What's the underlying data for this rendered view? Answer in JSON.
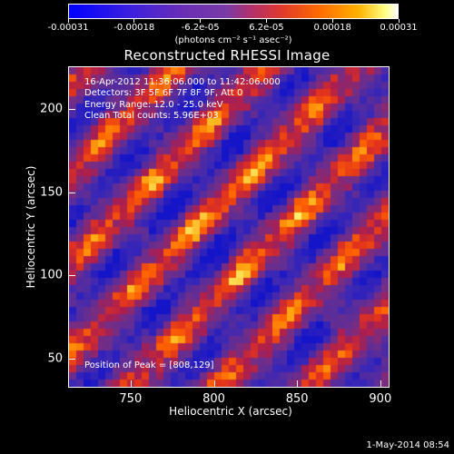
{
  "colorbar": {
    "tick_labels": [
      "-0.00031",
      "-0.00018",
      "-6.2e-05",
      "6.2e-05",
      "0.00018",
      "0.00031"
    ],
    "unit": "(photons cm⁻² s⁻¹ asec⁻²)",
    "colors": [
      "#0000ff",
      "#6a2fb5",
      "#e03a2a",
      "#ff6a00",
      "#ffb000",
      "#ffffff"
    ]
  },
  "annotations": {
    "time_range": "16-Apr-2012 11:36:06.000 to 11:42:06.000",
    "detectors": "Detectors: 3F 5F 6F 7F 8F 9F, Att 0",
    "energy_range": "Energy Range: 12.0 - 25.0 keV",
    "clean": "Clean     Total counts: 5.96E+03",
    "peak": "Position of Peak = [808,129]"
  },
  "footer": {
    "timestamp": "1-May-2014 08:54"
  },
  "chart_data": {
    "type": "heatmap",
    "title": "Reconstructed RHESSI Image",
    "xlabel": "Heliocentric X (arcsec)",
    "ylabel": "Heliocentric Y (arcsec)",
    "xlim": [
      713,
      905
    ],
    "ylim": [
      33,
      225
    ],
    "x_ticks": [
      750,
      800,
      850,
      900
    ],
    "y_ticks": [
      50,
      100,
      150,
      200
    ],
    "colorbar_range": [
      -0.00031,
      0.00031
    ],
    "peak_position": [
      808,
      129
    ],
    "total_counts": 5960,
    "energy_range_keV": [
      12.0,
      25.0
    ],
    "detectors": [
      "3F",
      "5F",
      "6F",
      "7F",
      "8F",
      "9F"
    ]
  }
}
